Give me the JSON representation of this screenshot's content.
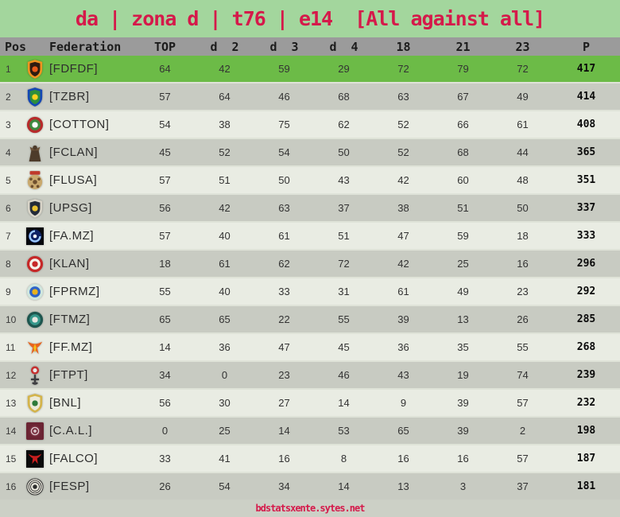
{
  "title": "da | zona d | t76 | e14  [All against all]",
  "colors": {
    "banner_bg": "#a3d69d",
    "header_bg": "#9b9b9b",
    "highlight_row": "#6cbb47",
    "row_light": "#e9ece3",
    "row_dark": "#c8cbc2",
    "footer_bg": "#ccd0c6",
    "accent_crimson": "#d5194a",
    "text": "#333333"
  },
  "table": {
    "columns": {
      "pos": "Pos",
      "federation": "Federation",
      "values": [
        "TOP",
        "d  2",
        "d  3",
        "d  4",
        "18",
        "21",
        "23"
      ],
      "points": "P"
    },
    "rows": [
      {
        "pos": 1,
        "federation": "[FDFDF]",
        "values": [
          64,
          42,
          59,
          29,
          72,
          79,
          72
        ],
        "points": 417,
        "highlight": true,
        "badge": {
          "name": "fdfdf-crest-icon",
          "shape": "shield",
          "colors": [
            "#ef9420",
            "#2e1c10",
            "#e85a1a"
          ]
        }
      },
      {
        "pos": 2,
        "federation": "[TZBR]",
        "values": [
          57,
          64,
          46,
          68,
          63,
          67,
          49
        ],
        "points": 414,
        "highlight": false,
        "badge": {
          "name": "tzbr-crest-icon",
          "shape": "shield",
          "colors": [
            "#1448b4",
            "#2e8f3c",
            "#ffd21e"
          ]
        }
      },
      {
        "pos": 3,
        "federation": "[COTTON]",
        "values": [
          54,
          38,
          75,
          62,
          52,
          66,
          61
        ],
        "points": 408,
        "highlight": false,
        "badge": {
          "name": "cotton-crest-icon",
          "shape": "circle",
          "colors": [
            "#b62b2b",
            "#3f8a40",
            "#ffffff"
          ]
        }
      },
      {
        "pos": 4,
        "federation": "[FCLAN]",
        "values": [
          45,
          52,
          54,
          50,
          52,
          68,
          44
        ],
        "points": 365,
        "highlight": false,
        "badge": {
          "name": "fclan-crest-icon",
          "shape": "figure",
          "colors": [
            "#4d3b2a",
            "#6b5138",
            "#2e2218"
          ]
        }
      },
      {
        "pos": 5,
        "federation": "[FLUSA]",
        "values": [
          57,
          51,
          50,
          43,
          42,
          60,
          48
        ],
        "points": 351,
        "highlight": false,
        "badge": {
          "name": "flusa-crest-icon",
          "shape": "ball",
          "colors": [
            "#6e4f2e",
            "#c9a96e",
            "#c0392b"
          ]
        }
      },
      {
        "pos": 6,
        "federation": "[UPSG]",
        "values": [
          56,
          42,
          63,
          37,
          38,
          51,
          50
        ],
        "points": 337,
        "highlight": false,
        "badge": {
          "name": "upsg-crest-icon",
          "shape": "shield",
          "colors": [
            "#d8d4c8",
            "#232a38",
            "#e8c030"
          ]
        }
      },
      {
        "pos": 7,
        "federation": "[FA.MZ]",
        "values": [
          57,
          40,
          61,
          51,
          47,
          59,
          18
        ],
        "points": 333,
        "highlight": false,
        "badge": {
          "name": "famz-crest-icon",
          "shape": "swirl",
          "colors": [
            "#05070d",
            "#1a3fc0",
            "#9ecbff"
          ]
        }
      },
      {
        "pos": 8,
        "federation": "[KLAN]",
        "values": [
          18,
          61,
          62,
          72,
          42,
          25,
          16
        ],
        "points": 296,
        "highlight": false,
        "badge": {
          "name": "klan-crest-icon",
          "shape": "circle",
          "colors": [
            "#c62828",
            "#f5f2ea",
            "#c62828"
          ]
        }
      },
      {
        "pos": 9,
        "federation": "[FPRMZ]",
        "values": [
          55,
          40,
          33,
          31,
          61,
          49,
          23
        ],
        "points": 292,
        "highlight": false,
        "badge": {
          "name": "fprmz-crest-icon",
          "shape": "circle",
          "colors": [
            "#cfe6de",
            "#2e64c8",
            "#e8b21e"
          ]
        }
      },
      {
        "pos": 10,
        "federation": "[FTMZ]",
        "values": [
          65,
          65,
          22,
          55,
          39,
          13,
          26
        ],
        "points": 285,
        "highlight": false,
        "badge": {
          "name": "ftmz-crest-icon",
          "shape": "circle",
          "colors": [
            "#1e564f",
            "#37978b",
            "#e6e6e0"
          ]
        }
      },
      {
        "pos": 11,
        "federation": "[FF.MZ]",
        "values": [
          14,
          36,
          47,
          45,
          36,
          35,
          55
        ],
        "points": 268,
        "highlight": false,
        "badge": {
          "name": "ffmz-crest-icon",
          "shape": "bird",
          "colors": [
            "#e8641e",
            "#f5c018",
            "#d8341e"
          ]
        }
      },
      {
        "pos": 12,
        "federation": "[FTPT]",
        "values": [
          34,
          0,
          23,
          46,
          43,
          19,
          74
        ],
        "points": 239,
        "highlight": false,
        "badge": {
          "name": "ftpt-crest-icon",
          "shape": "crest",
          "colors": [
            "#3c3c40",
            "#c62f2f",
            "#e8e8e8"
          ]
        }
      },
      {
        "pos": 13,
        "federation": "[BNL]",
        "values": [
          56,
          30,
          27,
          14,
          9,
          39,
          57
        ],
        "points": 232,
        "highlight": false,
        "badge": {
          "name": "bnl-crest-icon",
          "shape": "shield",
          "colors": [
            "#d4b44a",
            "#ecead8",
            "#2e7a3a"
          ]
        }
      },
      {
        "pos": 14,
        "federation": "[C.A.L.]",
        "values": [
          0,
          25,
          14,
          53,
          65,
          39,
          2
        ],
        "points": 198,
        "highlight": false,
        "badge": {
          "name": "cal-crest-icon",
          "shape": "square",
          "colors": [
            "#6b2433",
            "#7a3040",
            "#dcc8cc"
          ]
        }
      },
      {
        "pos": 15,
        "federation": "[FALCO]",
        "values": [
          33,
          41,
          16,
          8,
          16,
          16,
          57
        ],
        "points": 187,
        "highlight": false,
        "badge": {
          "name": "falco-crest-icon",
          "shape": "birdsq",
          "colors": [
            "#0a0a0a",
            "#c81e1e",
            "#2e6e2e"
          ]
        }
      },
      {
        "pos": 16,
        "federation": "[FESP]",
        "values": [
          26,
          54,
          34,
          14,
          13,
          3,
          37
        ],
        "points": 181,
        "highlight": false,
        "badge": {
          "name": "fesp-crest-icon",
          "shape": "rings",
          "colors": [
            "#eceadf",
            "#2e2e2e",
            "#8a8a80"
          ]
        }
      }
    ]
  },
  "footer": {
    "url_label": "bdstatsxente.sytes.net"
  }
}
